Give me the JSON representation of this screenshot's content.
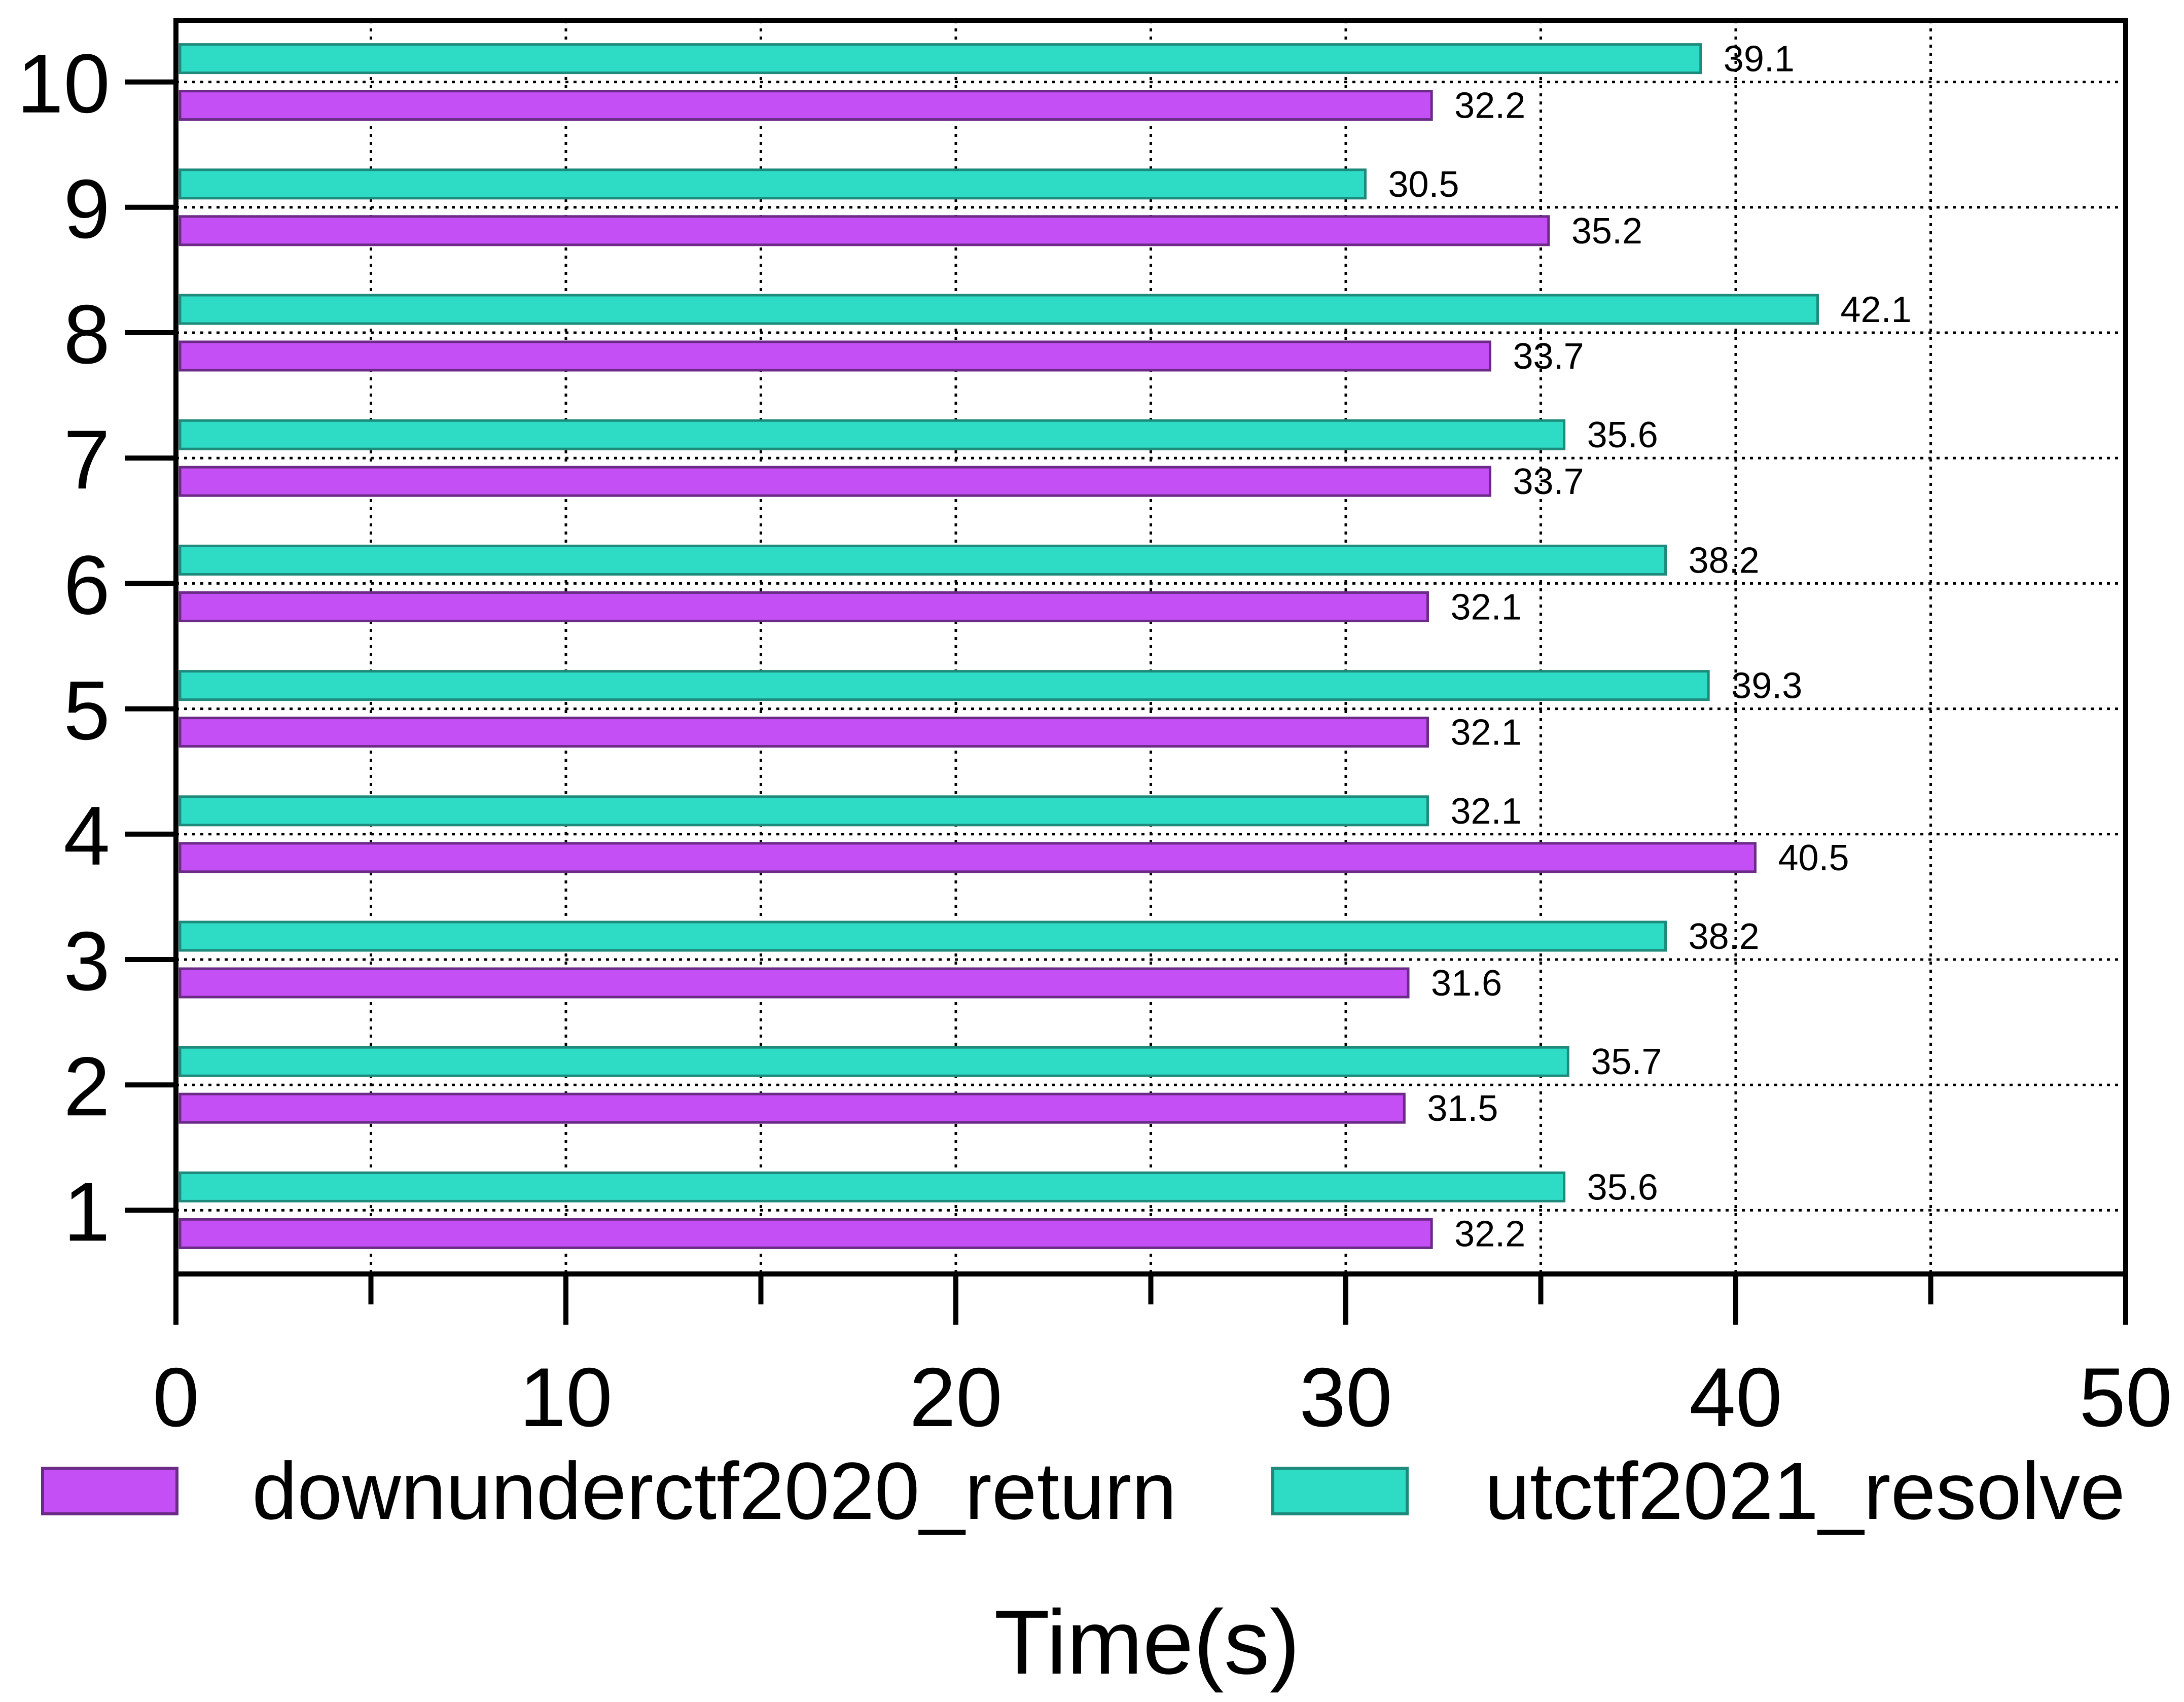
{
  "chart_data": {
    "type": "bar",
    "orientation": "horizontal",
    "categories": [
      "1",
      "2",
      "3",
      "4",
      "5",
      "6",
      "7",
      "8",
      "9",
      "10"
    ],
    "series": [
      {
        "name": "downunderctf2020_return",
        "color": "#c44ff4",
        "border": "#6a2a86",
        "values": [
          32.2,
          31.5,
          31.6,
          40.5,
          32.1,
          32.1,
          33.7,
          33.7,
          35.2,
          32.2
        ]
      },
      {
        "name": "utctf2021_resolve",
        "color": "#2edcc6",
        "border": "#1e8a7c",
        "values": [
          35.6,
          35.7,
          38.2,
          32.1,
          39.3,
          38.2,
          35.6,
          42.1,
          30.5,
          39.1
        ]
      }
    ],
    "x_ticks": [
      0,
      10,
      20,
      30,
      40,
      50
    ],
    "xlim": [
      0,
      50
    ],
    "xlabel": "Time(s)",
    "ylabel": "",
    "title": "",
    "grid": true,
    "legend_position": "bottom"
  }
}
